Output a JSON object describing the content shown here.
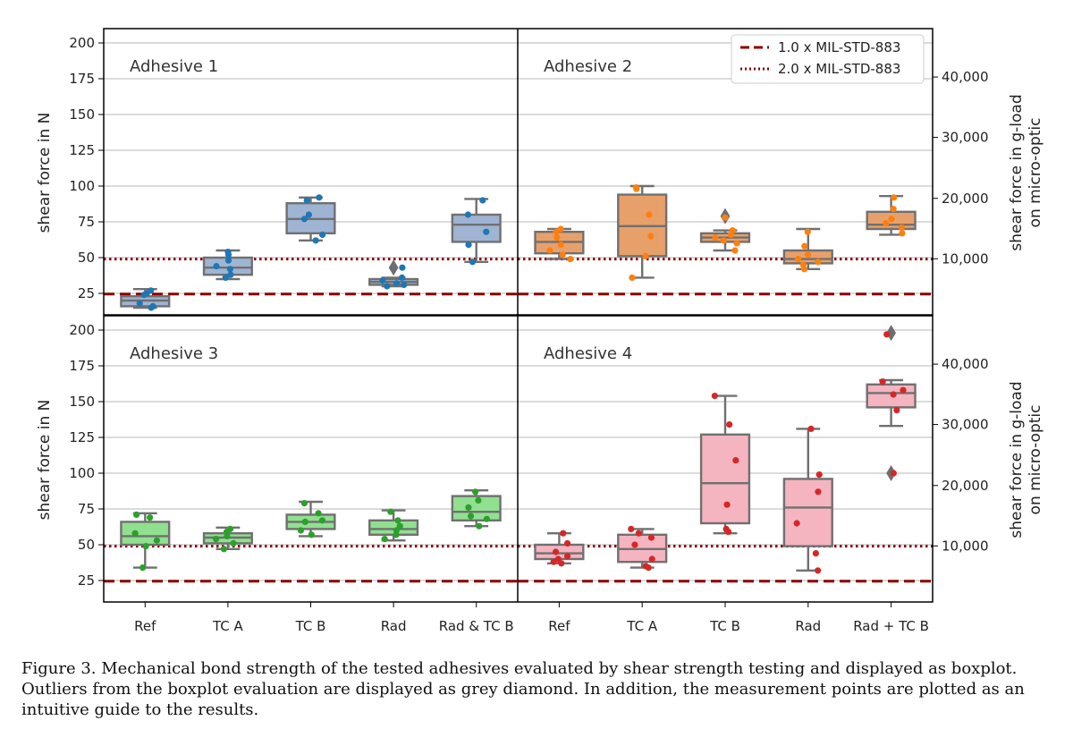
{
  "caption": "Figure 3. Mechanical bond strength of the tested adhesives evaluated by shear strength testing and displayed as boxplot. Outliers from the boxplot evaluation are displayed as grey diamond. In addition, the measurement points are plotted as an intuitive guide to the results.",
  "legend": [
    {
      "label": "1.0 x MIL-STD-883",
      "style": "dashed",
      "value": 24.5
    },
    {
      "label": "2.0 x MIL-STD-883",
      "style": "dotted",
      "value": 49
    }
  ],
  "chart_data": {
    "type": "box",
    "ylabel_left": "shear force in N",
    "ylabel_right_line1": "shear force in g-load",
    "ylabel_right_line2": "on micro-optic",
    "ylim": [
      10,
      210
    ],
    "yticks_left": [
      25,
      50,
      75,
      100,
      125,
      150,
      175,
      200
    ],
    "yticks_right": [
      {
        "label": "10,000",
        "value": 49.2
      },
      {
        "label": "20,000",
        "value": 91.4
      },
      {
        "label": "30,000",
        "value": 134.0
      },
      {
        "label": "40,000",
        "value": 176.2
      }
    ],
    "grid": "horizontal",
    "panels": [
      {
        "title": "Adhesive 1",
        "color": "#9fb4d3",
        "point_color": "#1f77b4",
        "categories": [
          "Ref",
          "TC A",
          "TC B",
          "Rad",
          "Rad & TC B"
        ],
        "boxes": [
          {
            "whisker_low": 15,
            "q1": 16,
            "median": 20,
            "q3": 23,
            "whisker_high": 28,
            "outliers": [],
            "points": [
              27,
              25,
              24,
              18,
              16,
              15
            ]
          },
          {
            "whisker_low": 35,
            "q1": 38,
            "median": 43,
            "q3": 50,
            "whisker_high": 55,
            "outliers": [],
            "points": [
              54,
              52,
              48,
              44,
              42,
              38,
              36
            ]
          },
          {
            "whisker_low": 62,
            "q1": 67,
            "median": 77,
            "q3": 88,
            "whisker_high": 92,
            "outliers": [],
            "points": [
              92,
              90,
              80,
              77,
              66,
              62
            ]
          },
          {
            "whisker_low": 30,
            "q1": 31,
            "median": 33,
            "q3": 35,
            "whisker_high": 36,
            "outliers": [
              43
            ],
            "points": [
              43,
              36,
              34,
              32,
              31,
              30
            ]
          },
          {
            "whisker_low": 47,
            "q1": 61,
            "median": 73,
            "q3": 80,
            "whisker_high": 91,
            "outliers": [],
            "points": [
              90,
              80,
              68,
              59,
              47
            ]
          }
        ]
      },
      {
        "title": "Adhesive 2",
        "color": "#e8a06a",
        "point_color": "#ff7f0e",
        "categories": [
          "Ref",
          "TC A",
          "TC B",
          "Rad",
          "Rad + TC B"
        ],
        "boxes": [
          {
            "whisker_low": 49,
            "q1": 53,
            "median": 61,
            "q3": 68,
            "whisker_high": 70,
            "outliers": [],
            "points": [
              70,
              68,
              64,
              59,
              55,
              52,
              49
            ]
          },
          {
            "whisker_low": 36,
            "q1": 51,
            "median": 72,
            "q3": 94,
            "whisker_high": 100,
            "outliers": [],
            "points": [
              99,
              98,
              80,
              65,
              51,
              36
            ]
          },
          {
            "whisker_low": 55,
            "q1": 61,
            "median": 64,
            "q3": 67,
            "whisker_high": 69,
            "outliers": [
              79
            ],
            "points": [
              78,
              69,
              66,
              64,
              62,
              60,
              55
            ]
          },
          {
            "whisker_low": 42,
            "q1": 46,
            "median": 49,
            "q3": 55,
            "whisker_high": 70,
            "outliers": [],
            "points": [
              68,
              58,
              52,
              49,
              47,
              45,
              42
            ]
          },
          {
            "whisker_low": 66,
            "q1": 70,
            "median": 73,
            "q3": 82,
            "whisker_high": 93,
            "outliers": [],
            "points": [
              92,
              84,
              77,
              74,
              71,
              67
            ]
          }
        ]
      },
      {
        "title": "Adhesive 3",
        "color": "#90e090",
        "point_color": "#2ca02c",
        "categories": [
          "Ref",
          "TC A",
          "TC B",
          "Rad",
          "Rad & TC B"
        ],
        "boxes": [
          {
            "whisker_low": 34,
            "q1": 50,
            "median": 56,
            "q3": 66,
            "whisker_high": 72,
            "outliers": [],
            "points": [
              71,
              69,
              58,
              53,
              49,
              34
            ]
          },
          {
            "whisker_low": 47,
            "q1": 51,
            "median": 55,
            "q3": 58,
            "whisker_high": 62,
            "outliers": [],
            "points": [
              61,
              59,
              56,
              54,
              51,
              47
            ]
          },
          {
            "whisker_low": 56,
            "q1": 61,
            "median": 66,
            "q3": 71,
            "whisker_high": 80,
            "outliers": [],
            "points": [
              79,
              72,
              67,
              66,
              60,
              57
            ]
          },
          {
            "whisker_low": 53,
            "q1": 57,
            "median": 61,
            "q3": 67,
            "whisker_high": 74,
            "outliers": [],
            "points": [
              73,
              67,
              63,
              60,
              57,
              54
            ]
          },
          {
            "whisker_low": 63,
            "q1": 67,
            "median": 73,
            "q3": 84,
            "whisker_high": 88,
            "outliers": [],
            "points": [
              87,
              81,
              76,
              70,
              68,
              63
            ]
          }
        ]
      },
      {
        "title": "Adhesive 4",
        "color": "#f4b4c0",
        "point_color": "#d62728",
        "categories": [
          "Ref",
          "TC A",
          "TC B",
          "Rad",
          "Rad + TC B"
        ],
        "boxes": [
          {
            "whisker_low": 37,
            "q1": 40,
            "median": 44,
            "q3": 50,
            "whisker_high": 58,
            "outliers": [],
            "points": [
              58,
              51,
              45,
              42,
              40,
              38,
              37
            ]
          },
          {
            "whisker_low": 34,
            "q1": 38,
            "median": 47,
            "q3": 57,
            "whisker_high": 61,
            "outliers": [],
            "points": [
              61,
              58,
              55,
              50,
              40,
              35,
              34
            ]
          },
          {
            "whisker_low": 58,
            "q1": 65,
            "median": 93,
            "q3": 127,
            "whisker_high": 154,
            "outliers": [],
            "points": [
              154,
              134,
              109,
              78,
              61,
              59
            ]
          },
          {
            "whisker_low": 32,
            "q1": 49,
            "median": 76,
            "q3": 96,
            "whisker_high": 131,
            "outliers": [],
            "points": [
              131,
              99,
              87,
              65,
              44,
              32
            ]
          },
          {
            "whisker_low": 133,
            "q1": 146,
            "median": 156,
            "q3": 162,
            "whisker_high": 165,
            "outliers": [
              198,
              100
            ],
            "points": [
              197,
              164,
              158,
              155,
              144,
              100
            ]
          }
        ]
      }
    ]
  }
}
